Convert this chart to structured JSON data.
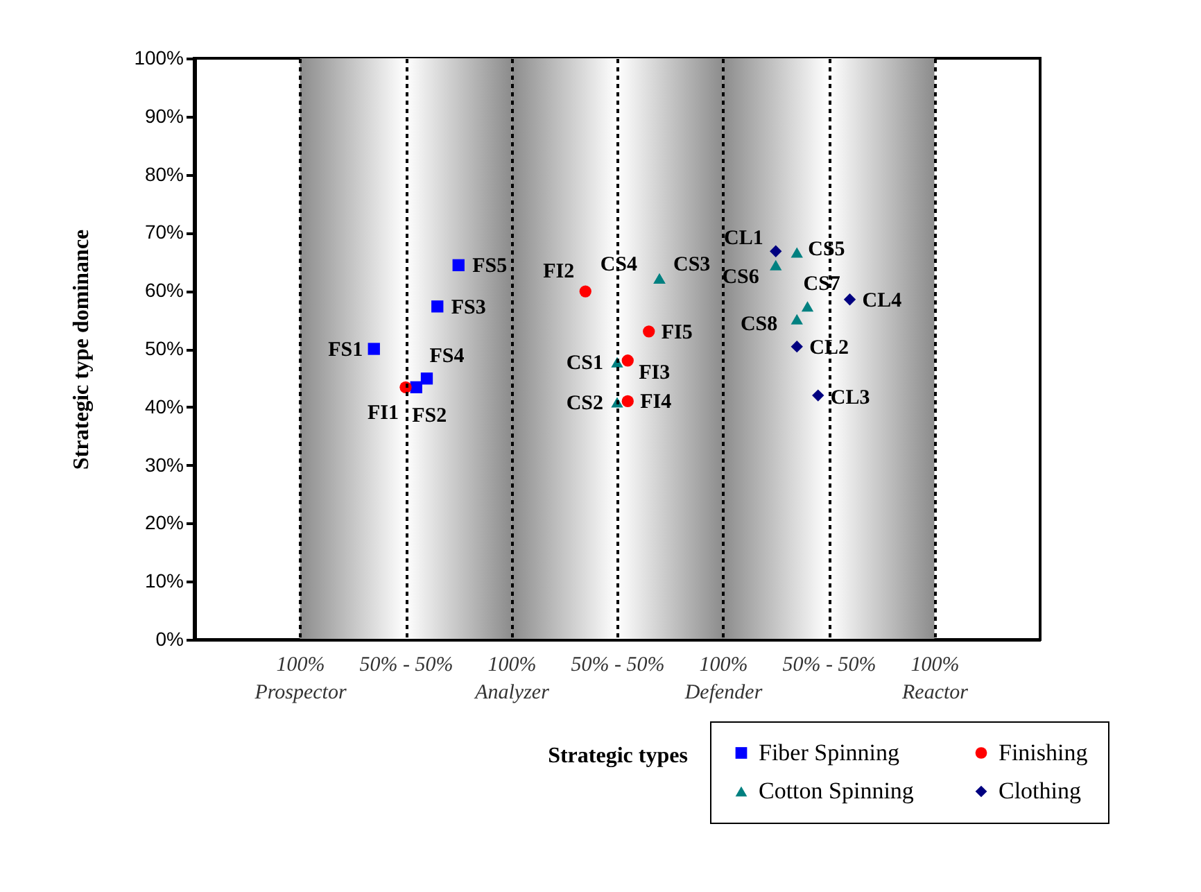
{
  "chart_data": {
    "type": "scatter",
    "xlabel": "Strategic types",
    "ylabel": "Strategic type dominance",
    "categories": [
      null,
      null,
      null,
      null,
      null,
      null,
      null,
      null,
      null,
      null,
      "100% Prospector",
      null,
      null,
      null,
      null,
      null,
      null,
      null,
      null,
      null,
      "50% - 50%",
      null,
      null,
      null,
      null,
      null,
      null,
      null,
      null,
      null,
      "100% Analyzer",
      null,
      null,
      null,
      null,
      null,
      null,
      null,
      null,
      null,
      "50% - 50%",
      null,
      null,
      null,
      null,
      null,
      null,
      null,
      null,
      null,
      "100% Defender",
      null,
      null,
      null,
      null,
      null,
      null,
      null,
      null,
      null,
      "50% - 50%",
      null,
      null,
      null,
      null,
      null,
      null,
      null,
      null,
      null,
      "100% Reactor",
      null,
      null,
      null,
      null,
      null,
      null,
      null,
      null,
      null,
      null
    ],
    "ylim": [
      0,
      100
    ],
    "yticks": [
      {
        "value": 0,
        "label": "0%"
      },
      {
        "value": 10,
        "label": "10%"
      },
      {
        "value": 20,
        "label": "20%"
      },
      {
        "value": 30,
        "label": "30%"
      },
      {
        "value": 40,
        "label": "40%"
      },
      {
        "value": 50,
        "label": "50%"
      },
      {
        "value": 60,
        "label": "60%"
      },
      {
        "value": 70,
        "label": "70%"
      },
      {
        "value": 80,
        "label": "80%"
      },
      {
        "value": 90,
        "label": "90%"
      },
      {
        "value": 100,
        "label": "100%"
      }
    ],
    "grid": "x",
    "legend": "bottom right",
    "bands": [
      {
        "axis": "x",
        "from": "100% Prospector",
        "to": "100% Analyzer",
        "color": "#8c8c8c"
      },
      {
        "axis": "x",
        "from": "100% Analyzer",
        "to": "100% Defender",
        "color": "#8c8c8c"
      },
      {
        "axis": "x",
        "from": "100% Defender",
        "to": "100% Reactor",
        "color": "#8c8c8c"
      }
    ],
    "series": [
      {
        "name": "Fiber Spinning",
        "color": "#0000ff",
        "marker": "square",
        "values": [
          null,
          null,
          null,
          null,
          null,
          null,
          null,
          null,
          null,
          null,
          null,
          null,
          null,
          null,
          null,
          null,
          null,
          50,
          null,
          null,
          null,
          43.4,
          44.9,
          57.3,
          null,
          64.4,
          null,
          null,
          null,
          null,
          null,
          null,
          null,
          null,
          null,
          null,
          null,
          null,
          null,
          null,
          null,
          null,
          null,
          null,
          null,
          null,
          null,
          null,
          null,
          null,
          null,
          null,
          null,
          null,
          null,
          null,
          null,
          null,
          null,
          null,
          null,
          null,
          null,
          null,
          null,
          null,
          null,
          null,
          null,
          null,
          null,
          null,
          null,
          null,
          null,
          null,
          null,
          null,
          null,
          null,
          null
        ],
        "value_labels": [
          null,
          null,
          null,
          null,
          null,
          null,
          null,
          null,
          null,
          null,
          null,
          null,
          null,
          null,
          null,
          null,
          null,
          "FS1",
          null,
          null,
          null,
          "FS2",
          "FS4",
          "FS3",
          null,
          "FS5",
          null,
          null,
          null,
          null,
          null,
          null,
          null,
          null,
          null,
          null,
          null,
          null,
          null,
          null,
          null,
          null,
          null,
          null,
          null,
          null,
          null,
          null,
          null,
          null,
          null,
          null,
          null,
          null,
          null,
          null,
          null,
          null,
          null,
          null,
          null,
          null,
          null,
          null,
          null,
          null,
          null,
          null,
          null,
          null,
          null,
          null,
          null,
          null,
          null,
          null,
          null,
          null,
          null,
          null,
          null
        ]
      },
      {
        "name": "Finishing",
        "color": "#ff0000",
        "marker": "circle",
        "values": [
          null,
          null,
          null,
          null,
          null,
          null,
          null,
          null,
          null,
          null,
          null,
          null,
          null,
          null,
          null,
          null,
          null,
          null,
          null,
          null,
          43.4,
          null,
          null,
          null,
          null,
          null,
          null,
          null,
          null,
          null,
          null,
          null,
          null,
          null,
          null,
          null,
          null,
          59.9,
          null,
          null,
          null,
          48,
          null,
          53,
          null,
          null,
          null,
          null,
          null,
          null,
          null,
          null,
          null,
          null,
          null,
          null,
          null,
          null,
          null,
          null,
          null,
          null,
          null,
          null,
          null,
          null,
          null,
          null,
          null,
          null,
          null,
          null,
          null,
          null,
          null,
          null,
          null,
          null,
          null,
          null,
          null
        ],
        "value_labels": [
          null,
          null,
          null,
          null,
          null,
          null,
          null,
          null,
          null,
          null,
          null,
          null,
          null,
          null,
          null,
          null,
          null,
          null,
          null,
          null,
          "FI1",
          null,
          null,
          null,
          null,
          null,
          null,
          null,
          null,
          null,
          null,
          null,
          null,
          null,
          null,
          null,
          null,
          "FI2",
          null,
          null,
          null,
          "FI3",
          null,
          "FI5",
          null,
          null,
          null,
          null,
          null,
          null,
          null,
          null,
          null,
          null,
          null,
          null,
          null,
          null,
          null,
          null,
          null,
          null,
          null,
          null,
          null,
          null,
          null,
          null,
          null,
          null,
          null,
          null,
          null,
          null,
          null,
          null,
          null,
          null,
          null,
          null,
          null
        ]
      },
      {
        "color": "#ff0000",
        "marker": "circle",
        "values": [
          null,
          null,
          null,
          null,
          null,
          null,
          null,
          null,
          null,
          null,
          null,
          null,
          null,
          null,
          null,
          null,
          null,
          null,
          null,
          null,
          null,
          null,
          null,
          null,
          null,
          null,
          null,
          null,
          null,
          null,
          null,
          null,
          null,
          null,
          null,
          null,
          null,
          null,
          null,
          null,
          null,
          41,
          null,
          null,
          null,
          null,
          null,
          null,
          null,
          null,
          null,
          null,
          null,
          null,
          null,
          null,
          null,
          null,
          null,
          null,
          null,
          null,
          null,
          null,
          null,
          null,
          null,
          null,
          null,
          null,
          null,
          null,
          null,
          null,
          null,
          null,
          null,
          null,
          null,
          null,
          null
        ],
        "value_labels": [
          null,
          null,
          null,
          null,
          null,
          null,
          null,
          null,
          null,
          null,
          null,
          null,
          null,
          null,
          null,
          null,
          null,
          null,
          null,
          null,
          null,
          null,
          null,
          null,
          null,
          null,
          null,
          null,
          null,
          null,
          null,
          null,
          null,
          null,
          null,
          null,
          null,
          null,
          null,
          null,
          null,
          "FI4",
          null,
          null,
          null,
          null,
          null,
          null,
          null,
          null,
          null,
          null,
          null,
          null,
          null,
          null,
          null,
          null,
          null,
          null,
          null,
          null,
          null,
          null,
          null,
          null,
          null,
          null,
          null,
          null,
          null,
          null,
          null,
          null,
          null,
          null,
          null,
          null,
          null,
          null,
          null
        ]
      },
      {
        "name": "Cotton Spinning",
        "color": "#008080",
        "marker": "triangle",
        "values": [
          null,
          null,
          null,
          null,
          null,
          null,
          null,
          null,
          null,
          null,
          null,
          null,
          null,
          null,
          null,
          null,
          null,
          null,
          null,
          null,
          null,
          null,
          null,
          null,
          null,
          null,
          null,
          null,
          null,
          null,
          null,
          null,
          null,
          null,
          null,
          null,
          null,
          null,
          null,
          null,
          47.7,
          null,
          null,
          null,
          62.1,
          null,
          null,
          null,
          null,
          null,
          null,
          null,
          null,
          null,
          null,
          64.4,
          null,
          66.6,
          57.3,
          null,
          null,
          null,
          null,
          null,
          null,
          null,
          null,
          null,
          null,
          null,
          null,
          null,
          null,
          null,
          null,
          null,
          null,
          null,
          null,
          null,
          null
        ],
        "value_labels": [
          null,
          null,
          null,
          null,
          null,
          null,
          null,
          null,
          null,
          null,
          null,
          null,
          null,
          null,
          null,
          null,
          null,
          null,
          null,
          null,
          null,
          null,
          null,
          null,
          null,
          null,
          null,
          null,
          null,
          null,
          null,
          null,
          null,
          null,
          null,
          null,
          null,
          null,
          null,
          null,
          "CS1",
          null,
          null,
          null,
          "CS3",
          null,
          null,
          null,
          null,
          null,
          null,
          null,
          null,
          null,
          null,
          "CS6",
          null,
          "CS5",
          "CS7",
          null,
          null,
          null,
          null,
          null,
          null,
          null,
          null,
          null,
          null,
          null,
          null,
          null,
          null,
          null,
          null,
          null,
          null,
          null,
          null,
          null,
          null
        ]
      },
      {
        "color": "#008080",
        "marker": "triangle",
        "values": [
          null,
          null,
          null,
          null,
          null,
          null,
          null,
          null,
          null,
          null,
          null,
          null,
          null,
          null,
          null,
          null,
          null,
          null,
          null,
          null,
          null,
          null,
          null,
          null,
          null,
          null,
          null,
          null,
          null,
          null,
          null,
          null,
          null,
          null,
          null,
          null,
          null,
          null,
          null,
          null,
          40.8,
          null,
          null,
          null,
          62.1,
          null,
          null,
          null,
          null,
          null,
          null,
          null,
          null,
          null,
          null,
          null,
          null,
          55.1,
          null,
          null,
          null,
          null,
          null,
          null,
          null,
          null,
          null,
          null,
          null,
          null,
          null,
          null,
          null,
          null,
          null,
          null,
          null,
          null,
          null,
          null,
          null
        ],
        "value_labels": [
          null,
          null,
          null,
          null,
          null,
          null,
          null,
          null,
          null,
          null,
          null,
          null,
          null,
          null,
          null,
          null,
          null,
          null,
          null,
          null,
          null,
          null,
          null,
          null,
          null,
          null,
          null,
          null,
          null,
          null,
          null,
          null,
          null,
          null,
          null,
          null,
          null,
          null,
          null,
          null,
          "CS2",
          null,
          null,
          null,
          "CS4",
          null,
          null,
          null,
          null,
          null,
          null,
          null,
          null,
          null,
          null,
          null,
          null,
          "CS8",
          null,
          null,
          null,
          null,
          null,
          null,
          null,
          null,
          null,
          null,
          null,
          null,
          null,
          null,
          null,
          null,
          null,
          null,
          null,
          null,
          null,
          null,
          null
        ]
      },
      {
        "name": "Clothing",
        "color": "#000080",
        "marker": "diamond",
        "values": [
          null,
          null,
          null,
          null,
          null,
          null,
          null,
          null,
          null,
          null,
          null,
          null,
          null,
          null,
          null,
          null,
          null,
          null,
          null,
          null,
          null,
          null,
          null,
          null,
          null,
          null,
          null,
          null,
          null,
          null,
          null,
          null,
          null,
          null,
          null,
          null,
          null,
          null,
          null,
          null,
          null,
          null,
          null,
          null,
          null,
          null,
          null,
          null,
          null,
          null,
          null,
          null,
          null,
          null,
          null,
          66.8,
          null,
          50.4,
          null,
          42,
          null,
          null,
          58.5,
          null,
          null,
          null,
          null,
          null,
          null,
          null,
          null,
          null,
          null,
          null,
          null,
          null,
          null,
          null,
          null,
          null,
          null
        ],
        "value_labels": [
          null,
          null,
          null,
          null,
          null,
          null,
          null,
          null,
          null,
          null,
          null,
          null,
          null,
          null,
          null,
          null,
          null,
          null,
          null,
          null,
          null,
          null,
          null,
          null,
          null,
          null,
          null,
          null,
          null,
          null,
          null,
          null,
          null,
          null,
          null,
          null,
          null,
          null,
          null,
          null,
          null,
          null,
          null,
          null,
          null,
          null,
          null,
          null,
          null,
          null,
          null,
          null,
          null,
          null,
          null,
          "CL1",
          null,
          "CL2",
          null,
          "CL3",
          null,
          null,
          "CL4",
          null,
          null,
          null,
          null,
          null,
          null,
          null,
          null,
          null,
          null,
          null,
          null,
          null,
          null,
          null,
          null,
          null,
          null
        ]
      }
    ]
  }
}
